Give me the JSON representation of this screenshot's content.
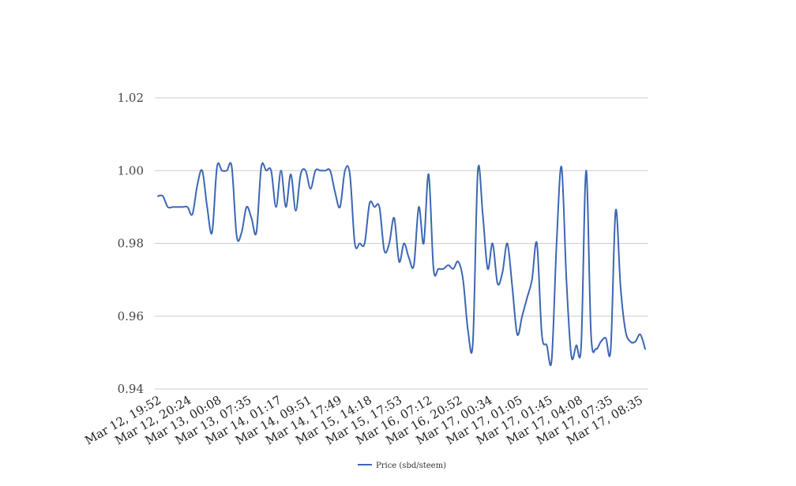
{
  "chart_data": {
    "type": "line",
    "title": "",
    "xlabel": "",
    "ylabel": "",
    "ylim": [
      0.94,
      1.02
    ],
    "yticks": [
      "0.94",
      "0.96",
      "0.98",
      "1.00",
      "1.02"
    ],
    "yticks_values": [
      0.94,
      0.96,
      0.98,
      1.0,
      1.02
    ],
    "xticks": [
      "Mar 12, 19:52",
      "Mar 12, 20:24",
      "Mar 13, 00:08",
      "Mar 13, 07:35",
      "Mar 14, 01:17",
      "Mar 14, 09:51",
      "Mar 14, 17:49",
      "Mar 15, 14:18",
      "Mar 15, 17:53",
      "Mar 16, 07:12",
      "Mar 16, 20:52",
      "Mar 17, 00:34",
      "Mar 17, 01:05",
      "Mar 17, 01:45",
      "Mar 17, 04:08",
      "Mar 17, 07:35",
      "Mar 17, 08:35"
    ],
    "grid": true,
    "legend_position": "bottom-center",
    "color": "#3c66b4",
    "series": [
      {
        "name": "Price (sbd/steem)",
        "values": [
          0.993,
          0.993,
          0.99,
          0.99,
          0.99,
          0.99,
          0.99,
          0.988,
          0.996,
          1.0,
          0.99,
          0.983,
          1.001,
          1.0,
          1.0,
          1.001,
          0.982,
          0.983,
          0.99,
          0.987,
          0.983,
          1.001,
          1.0,
          1.0,
          0.99,
          1.0,
          0.99,
          0.999,
          0.989,
          0.999,
          1.0,
          0.995,
          1.0,
          1.0,
          1.0,
          1.0,
          0.994,
          0.99,
          1.0,
          0.999,
          0.98,
          0.98,
          0.98,
          0.991,
          0.99,
          0.99,
          0.978,
          0.98,
          0.987,
          0.975,
          0.98,
          0.976,
          0.974,
          0.99,
          0.98,
          0.999,
          0.973,
          0.973,
          0.973,
          0.974,
          0.973,
          0.975,
          0.97,
          0.956,
          0.953,
          1.0,
          0.988,
          0.973,
          0.98,
          0.969,
          0.972,
          0.98,
          0.968,
          0.955,
          0.96,
          0.965,
          0.97,
          0.98,
          0.955,
          0.952,
          0.948,
          0.98,
          1.001,
          0.97,
          0.949,
          0.952,
          0.952,
          1.0,
          0.955,
          0.951,
          0.953,
          0.954,
          0.951,
          0.989,
          0.968,
          0.956,
          0.953,
          0.953,
          0.955,
          0.951
        ]
      }
    ]
  }
}
